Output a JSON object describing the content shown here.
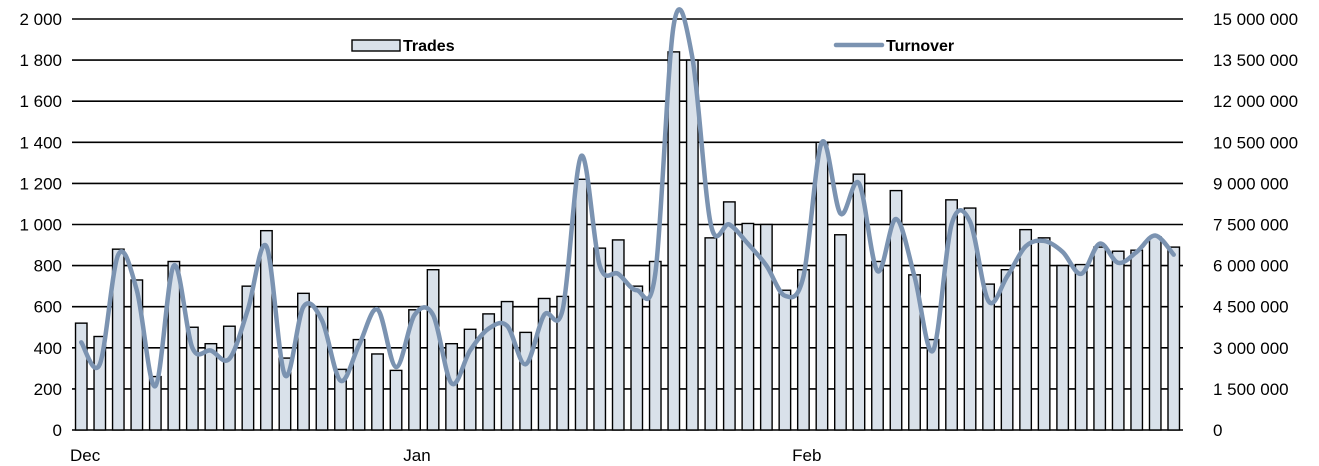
{
  "chart_data": {
    "type": "bar",
    "title": "",
    "legend": {
      "placement": "top",
      "entries": [
        "Trades",
        "Turnover"
      ]
    },
    "x_labels": [
      "Dec",
      "Jan",
      "Feb"
    ],
    "x_label_index": [
      0,
      18,
      39
    ],
    "y_left": {
      "min": 0,
      "max": 2000,
      "step": 200,
      "tick_labels": [
        "0",
        "200",
        "400",
        "600",
        "800",
        "1 000",
        "1 200",
        "1 400",
        "1 600",
        "1 800",
        "2 000"
      ]
    },
    "y_right": {
      "min": 0,
      "max": 15000000,
      "step": 1500000,
      "tick_labels": [
        "0",
        "1 500 000",
        "3 000 000",
        "4 500 000",
        "6 000 000",
        "7 500 000",
        "9 000 000",
        "10 500 000",
        "12 000 000",
        "13 500 000",
        "15 000 000"
      ]
    },
    "grid": true,
    "colors": {
      "bars": "#d9e1ea",
      "line": "#7b93b1"
    },
    "series": [
      {
        "name": "Trades",
        "axis": "left",
        "kind": "bar",
        "values": [
          520,
          455,
          880,
          730,
          260,
          820,
          500,
          420,
          505,
          700,
          970,
          350,
          665,
          600,
          295,
          440,
          370,
          290,
          585,
          780,
          420,
          490,
          565,
          625,
          475,
          640,
          650,
          1220,
          885,
          925,
          700,
          820,
          1840,
          1800,
          935,
          1110,
          1005,
          1000,
          680,
          780,
          1400,
          950,
          1245,
          820,
          1165,
          755,
          440,
          1120,
          1080,
          710,
          780,
          975,
          935,
          800,
          805,
          890,
          870,
          875,
          940,
          890
        ]
      },
      {
        "name": "Turnover",
        "axis": "right",
        "kind": "line",
        "values": [
          3200000,
          2400000,
          6400000,
          5100000,
          1600000,
          6000000,
          3000000,
          2900000,
          2600000,
          4400000,
          6700000,
          2000000,
          4500000,
          4000000,
          1800000,
          3100000,
          4400000,
          2300000,
          4200000,
          4200000,
          1700000,
          2900000,
          3700000,
          3800000,
          2400000,
          4200000,
          4400000,
          10000000,
          6000000,
          5700000,
          5100000,
          5700000,
          14800000,
          13600000,
          7500000,
          7500000,
          6800000,
          6000000,
          4900000,
          5600000,
          10500000,
          7900000,
          9000000,
          5800000,
          7700000,
          5600000,
          2900000,
          7500000,
          7600000,
          4700000,
          5600000,
          6700000,
          6900000,
          6500000,
          5700000,
          6800000,
          6100000,
          6500000,
          7100000,
          6400000
        ]
      }
    ]
  }
}
